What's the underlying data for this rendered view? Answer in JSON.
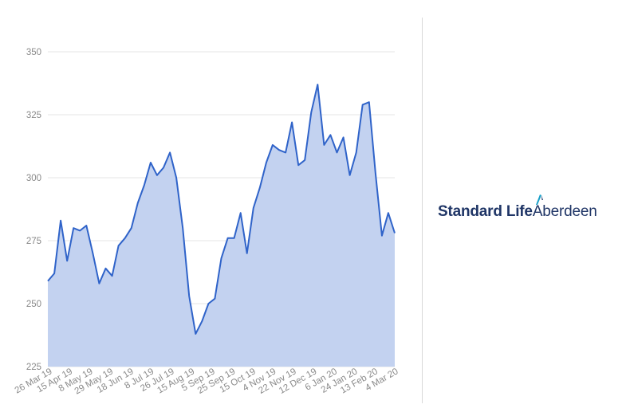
{
  "chart_data": {
    "type": "area",
    "title": "",
    "xlabel": "",
    "ylabel": "",
    "ylim": [
      225,
      350
    ],
    "yticks": [
      225,
      250,
      275,
      300,
      325,
      350
    ],
    "xticks": [
      "26 Mar 19",
      "15 Apr 19",
      "8 May 19",
      "29 May 19",
      "18 Jun 19",
      "8 Jul 19",
      "26 Jul 19",
      "15 Aug 19",
      "5 Sep 19",
      "25 Sep 19",
      "15 Oct 19",
      "4 Nov 19",
      "22 Nov 19",
      "12 Dec 19",
      "6 Jan 20",
      "24 Jan 20",
      "13 Feb 20",
      "4 Mar 20"
    ],
    "x": [
      "26 Mar 19",
      "1 Apr 19",
      "8 Apr 19",
      "15 Apr 19",
      "22 Apr 19",
      "29 Apr 19",
      "3 May 19",
      "8 May 19",
      "15 May 19",
      "22 May 19",
      "29 May 19",
      "5 Jun 19",
      "12 Jun 19",
      "18 Jun 19",
      "25 Jun 19",
      "1 Jul 19",
      "8 Jul 19",
      "15 Jul 19",
      "20 Jul 19",
      "26 Jul 19",
      "1 Aug 19",
      "8 Aug 19",
      "15 Aug 19",
      "22 Aug 19",
      "29 Aug 19",
      "5 Sep 19",
      "12 Sep 19",
      "19 Sep 19",
      "25 Sep 19",
      "1 Oct 19",
      "8 Oct 19",
      "15 Oct 19",
      "22 Oct 19",
      "29 Oct 19",
      "4 Nov 19",
      "11 Nov 19",
      "18 Nov 19",
      "22 Nov 19",
      "29 Nov 19",
      "6 Dec 19",
      "12 Dec 19",
      "19 Dec 19",
      "27 Dec 19",
      "2 Jan 20",
      "6 Jan 20",
      "13 Jan 20",
      "20 Jan 20",
      "24 Jan 20",
      "31 Jan 20",
      "7 Feb 20",
      "13 Feb 20",
      "20 Feb 20",
      "27 Feb 20",
      "4 Mar 20",
      "6 Mar 20"
    ],
    "series": [
      {
        "values": [
          259,
          262,
          283,
          267,
          280,
          279,
          281,
          270,
          258,
          264,
          261,
          273,
          276,
          280,
          290,
          297,
          306,
          301,
          304,
          310,
          300,
          280,
          253,
          238,
          243,
          250,
          252,
          268,
          276,
          276,
          286,
          270,
          288,
          296,
          306,
          313,
          311,
          310,
          322,
          305,
          307,
          326,
          337,
          313,
          317,
          310,
          316,
          301,
          310,
          329,
          330,
          302,
          277,
          286,
          278
        ],
        "color": "#2f63c9",
        "fill": "#c3d2f0"
      }
    ],
    "grid": true,
    "legend": "none"
  },
  "logo": {
    "part1": "Standard Life",
    "part2": "Aberdeen",
    "color": "#1f3566",
    "accent": "#1aa0c8"
  }
}
